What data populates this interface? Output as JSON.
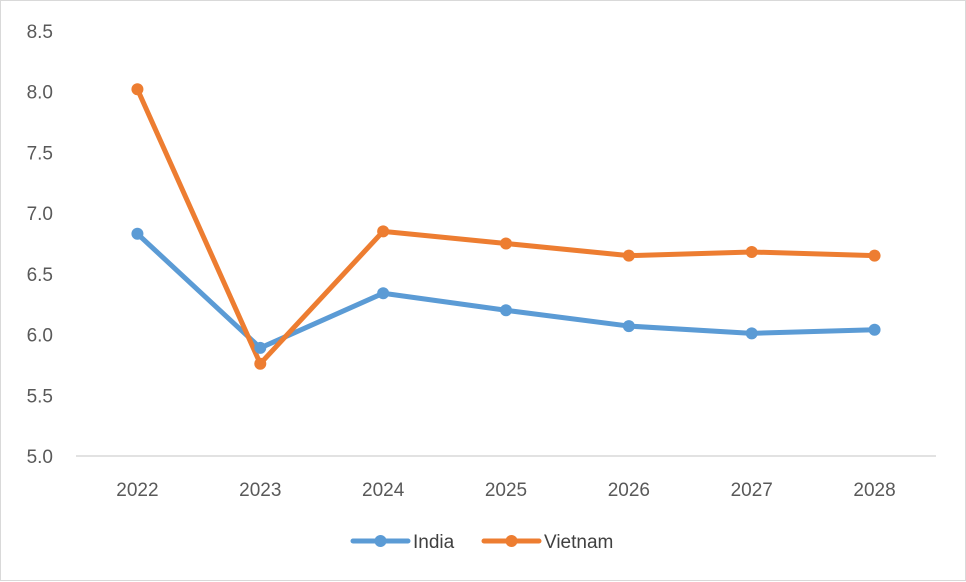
{
  "chart_data": {
    "type": "line",
    "x": [
      "2022",
      "2023",
      "2024",
      "2025",
      "2026",
      "2027",
      "2028"
    ],
    "series": [
      {
        "name": "India",
        "color": "#5b9bd5",
        "values": [
          6.83,
          5.89,
          6.34,
          6.2,
          6.07,
          6.01,
          6.04
        ]
      },
      {
        "name": "Vietnam",
        "color": "#ed7d31",
        "values": [
          8.02,
          5.76,
          6.85,
          6.75,
          6.65,
          6.68,
          6.65
        ]
      }
    ],
    "y_ticks": [
      "5.0",
      "5.5",
      "6.0",
      "6.5",
      "7.0",
      "7.5",
      "8.0",
      "8.5"
    ],
    "ylim": [
      5.0,
      8.5
    ],
    "grid": false,
    "legend_position": "bottom"
  }
}
